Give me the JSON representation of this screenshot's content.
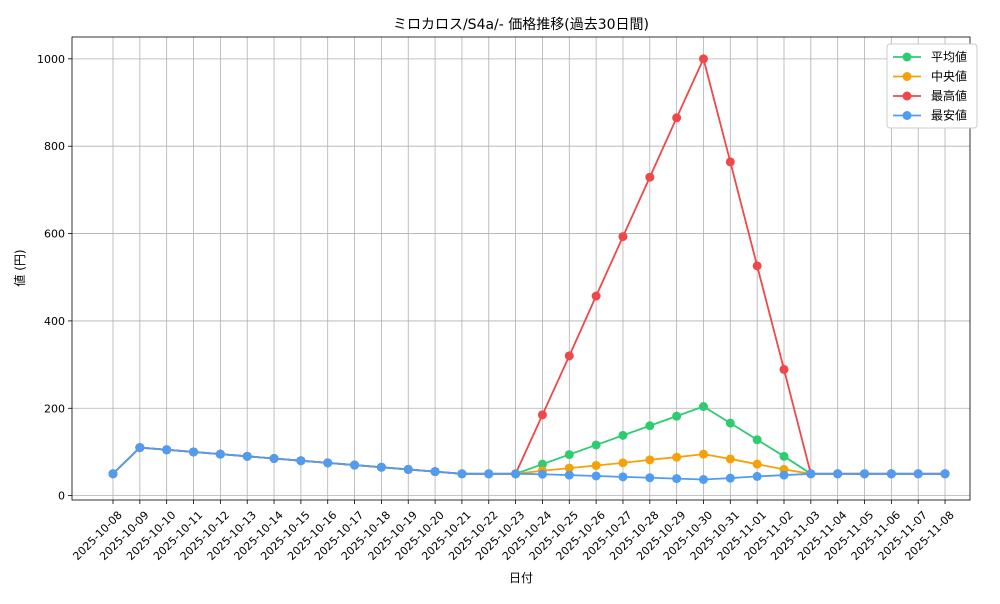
{
  "chart_data": {
    "type": "line",
    "title": "ミロカロス/S4a/- 価格推移(過去30日間)",
    "xlabel": "日付",
    "ylabel": "値 (円)",
    "ylim": [
      -10,
      1050
    ],
    "yticks": [
      0,
      200,
      400,
      600,
      800,
      1000
    ],
    "grid": true,
    "legend_position": "top-right",
    "categories": [
      "2025-10-08",
      "2025-10-09",
      "2025-10-10",
      "2025-10-11",
      "2025-10-12",
      "2025-10-13",
      "2025-10-14",
      "2025-10-15",
      "2025-10-16",
      "2025-10-17",
      "2025-10-18",
      "2025-10-19",
      "2025-10-20",
      "2025-10-21",
      "2025-10-22",
      "2025-10-23",
      "2025-10-24",
      "2025-10-25",
      "2025-10-26",
      "2025-10-27",
      "2025-10-28",
      "2025-10-29",
      "2025-10-30",
      "2025-10-31",
      "2025-11-01",
      "2025-11-02",
      "2025-11-03",
      "2025-11-04",
      "2025-11-05",
      "2025-11-06",
      "2025-11-07",
      "2025-11-08"
    ],
    "series": [
      {
        "name": "平均値",
        "color": "#2ecc71",
        "values": [
          50,
          110,
          105,
          100,
          95,
          90,
          85,
          80,
          75,
          70,
          65,
          60,
          55,
          50,
          50,
          50,
          72,
          94,
          116,
          138,
          160,
          182,
          204,
          166,
          128,
          90,
          50,
          50,
          50,
          50,
          50,
          50
        ]
      },
      {
        "name": "中央値",
        "color": "#f5a10a",
        "values": [
          50,
          110,
          105,
          100,
          95,
          90,
          85,
          80,
          75,
          70,
          65,
          60,
          55,
          50,
          50,
          50,
          57,
          63,
          69,
          75,
          82,
          88,
          95,
          84,
          72,
          60,
          50,
          50,
          50,
          50,
          50,
          50
        ]
      },
      {
        "name": "最高値",
        "color": "#f04848",
        "values": [
          50,
          110,
          105,
          100,
          95,
          90,
          85,
          80,
          75,
          70,
          65,
          60,
          55,
          50,
          50,
          50,
          185,
          320,
          457,
          593,
          729,
          865,
          1000,
          764,
          526,
          289,
          50,
          50,
          50,
          50,
          50,
          50
        ]
      },
      {
        "name": "最安値",
        "color": "#4f9cf0",
        "values": [
          50,
          110,
          105,
          100,
          95,
          90,
          85,
          80,
          75,
          70,
          65,
          60,
          55,
          50,
          50,
          50,
          49,
          47,
          45,
          43,
          41,
          39,
          37,
          40,
          44,
          47,
          50,
          50,
          50,
          50,
          50,
          50
        ]
      }
    ]
  }
}
